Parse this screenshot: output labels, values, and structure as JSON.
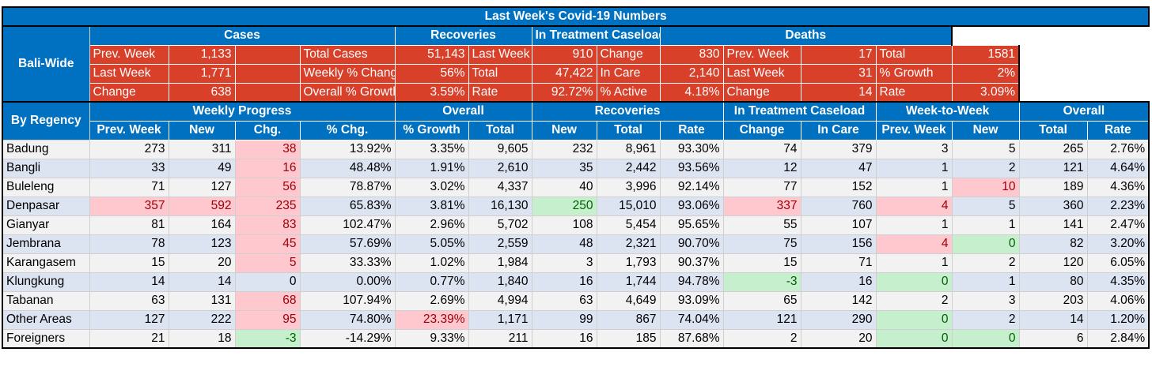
{
  "title": "Last Week's Covid-19 Numbers",
  "baliwide": {
    "label": "Bali-Wide",
    "groups": [
      "Cases",
      "Recoveries",
      "In Treatment Caseload",
      "Deaths"
    ],
    "rows": [
      [
        "Prev. Week",
        "1,133",
        "Total Cases",
        "51,143",
        "Last Week",
        "910",
        "Change",
        "830",
        "Prev. Week",
        "17",
        "Total",
        "1581"
      ],
      [
        "Last Week",
        "1,771",
        "Weekly % Change",
        "56%",
        "Total",
        "47,422",
        "In Care",
        "2,140",
        "Last Week",
        "31",
        "% Growth",
        "2%"
      ],
      [
        "Change",
        "638",
        "Overall % Growth",
        "3.59%",
        "Rate",
        "92.72%",
        "% Active",
        "4.18%",
        "Change",
        "14",
        "Rate",
        "3.09%"
      ]
    ]
  },
  "regency": {
    "label": "By Regency",
    "groups": [
      "Weekly Progress",
      "Overall",
      "Recoveries",
      "In Treatment Caseload",
      "Week-to-Week",
      "Overall"
    ],
    "columns": [
      "Prev. Week",
      "New",
      "Chg.",
      "% Chg.",
      "% Growth",
      "Total",
      "New",
      "Total",
      "Rate",
      "Change",
      "In Care",
      "Prev. Week",
      "New",
      "Total",
      "Rate"
    ],
    "rows": [
      {
        "name": "Badung",
        "v": [
          "273",
          "311",
          "38",
          "13.92%",
          "3.35%",
          "9,605",
          "232",
          "8,961",
          "93.30%",
          "74",
          "379",
          "3",
          "5",
          "265",
          "2.76%"
        ],
        "hl": {
          "2": "r"
        }
      },
      {
        "name": "Bangli",
        "v": [
          "33",
          "49",
          "16",
          "48.48%",
          "1.91%",
          "2,610",
          "35",
          "2,442",
          "93.56%",
          "12",
          "47",
          "1",
          "2",
          "121",
          "4.64%"
        ],
        "hl": {
          "2": "r"
        }
      },
      {
        "name": "Buleleng",
        "v": [
          "71",
          "127",
          "56",
          "78.87%",
          "3.02%",
          "4,337",
          "40",
          "3,996",
          "92.14%",
          "77",
          "152",
          "1",
          "10",
          "189",
          "4.36%"
        ],
        "hl": {
          "2": "r",
          "12": "r"
        }
      },
      {
        "name": "Denpasar",
        "v": [
          "357",
          "592",
          "235",
          "65.83%",
          "3.81%",
          "16,130",
          "250",
          "15,010",
          "93.06%",
          "337",
          "760",
          "4",
          "5",
          "360",
          "2.23%"
        ],
        "hl": {
          "0": "r",
          "1": "r",
          "2": "r",
          "6": "g",
          "9": "r",
          "11": "r"
        }
      },
      {
        "name": "Gianyar",
        "v": [
          "81",
          "164",
          "83",
          "102.47%",
          "2.96%",
          "5,702",
          "108",
          "5,454",
          "95.65%",
          "55",
          "107",
          "1",
          "1",
          "141",
          "2.47%"
        ],
        "hl": {
          "2": "r"
        }
      },
      {
        "name": "Jembrana",
        "v": [
          "78",
          "123",
          "45",
          "57.69%",
          "5.05%",
          "2,559",
          "48",
          "2,321",
          "90.70%",
          "75",
          "156",
          "4",
          "0",
          "82",
          "3.20%"
        ],
        "hl": {
          "2": "r",
          "11": "r",
          "12": "g"
        }
      },
      {
        "name": "Karangasem",
        "v": [
          "15",
          "20",
          "5",
          "33.33%",
          "1.02%",
          "1,984",
          "3",
          "1,793",
          "90.37%",
          "15",
          "71",
          "1",
          "2",
          "120",
          "6.05%"
        ],
        "hl": {
          "2": "r"
        }
      },
      {
        "name": "Klungkung",
        "v": [
          "14",
          "14",
          "0",
          "0.00%",
          "0.77%",
          "1,840",
          "16",
          "1,744",
          "94.78%",
          "-3",
          "16",
          "0",
          "1",
          "80",
          "4.35%"
        ],
        "hl": {
          "9": "g",
          "11": "g"
        }
      },
      {
        "name": "Tabanan",
        "v": [
          "63",
          "131",
          "68",
          "107.94%",
          "2.69%",
          "4,994",
          "63",
          "4,649",
          "93.09%",
          "65",
          "142",
          "2",
          "3",
          "203",
          "4.06%"
        ],
        "hl": {
          "2": "r"
        }
      },
      {
        "name": "Other Areas",
        "v": [
          "127",
          "222",
          "95",
          "74.80%",
          "23.39%",
          "1,171",
          "99",
          "867",
          "74.04%",
          "121",
          "290",
          "0",
          "2",
          "14",
          "1.20%"
        ],
        "hl": {
          "2": "r",
          "4": "r",
          "11": "g"
        }
      },
      {
        "name": "Foreigners",
        "v": [
          "21",
          "18",
          "-3",
          "-14.29%",
          "9.33%",
          "211",
          "16",
          "185",
          "87.68%",
          "2",
          "20",
          "0",
          "0",
          "6",
          "2.84%"
        ],
        "hl": {
          "2": "g",
          "11": "g",
          "12": "g"
        }
      }
    ]
  },
  "colors": {
    "header_blue": "#0070c0",
    "bali_red": "#d8402a",
    "hl_red_fill": "#ffc7ce",
    "hl_green_fill": "#c6efce"
  }
}
